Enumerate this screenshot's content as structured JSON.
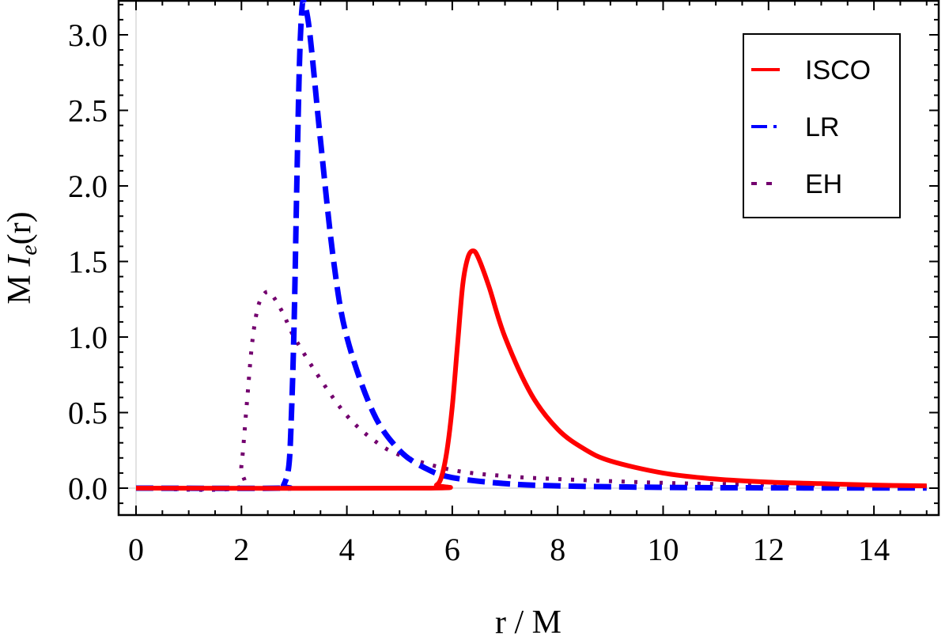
{
  "chart_data": {
    "type": "line",
    "title": "",
    "xlabel": "r / M",
    "ylabel_prefix": "M ",
    "ylabel_italic": "I",
    "ylabel_sub": "e",
    "ylabel_suffix": "(r)",
    "xlim": [
      -0.3,
      15.2
    ],
    "ylim": [
      -0.18,
      3.25
    ],
    "xticks": [
      0,
      2,
      4,
      6,
      8,
      10,
      12,
      14
    ],
    "yticks": [
      0.0,
      0.5,
      1.0,
      1.5,
      2.0,
      2.5,
      3.0
    ],
    "ytick_labels": [
      "0.0",
      "0.5",
      "1.0",
      "1.5",
      "2.0",
      "2.5",
      "3.0"
    ],
    "grid": false,
    "legend_position": "top-right",
    "series": [
      {
        "name": "ISCO",
        "color": "#ff0000",
        "style": "solid",
        "x": [
          0,
          5.5,
          5.7,
          5.8,
          5.9,
          6.0,
          6.1,
          6.2,
          6.3,
          6.4,
          6.5,
          6.7,
          7.0,
          7.5,
          8.0,
          8.5,
          9.0,
          10.0,
          11.0,
          12.0,
          13.0,
          14.0,
          15.0
        ],
        "y": [
          0,
          0,
          0.02,
          0.08,
          0.25,
          0.54,
          0.95,
          1.35,
          1.53,
          1.57,
          1.52,
          1.33,
          1.0,
          0.62,
          0.39,
          0.26,
          0.18,
          0.1,
          0.06,
          0.04,
          0.03,
          0.02,
          0.015
        ]
      },
      {
        "name": "LR",
        "color": "#0000ff",
        "style": "dashed",
        "x": [
          0,
          2.7,
          2.8,
          2.9,
          2.95,
          3.0,
          3.05,
          3.1,
          3.15,
          3.2,
          3.3,
          3.5,
          3.75,
          4.0,
          4.5,
          5.0,
          5.5,
          6.0,
          7.0,
          8.0,
          10.0,
          12.0,
          15.0
        ],
        "y": [
          0,
          0,
          0.02,
          0.15,
          0.5,
          1.1,
          2.0,
          2.8,
          3.18,
          3.2,
          3.0,
          2.3,
          1.5,
          1.0,
          0.5,
          0.25,
          0.13,
          0.07,
          0.03,
          0.015,
          0.005,
          0.002,
          0.001
        ]
      },
      {
        "name": "EH",
        "color": "#73006e",
        "style": "dotted",
        "x": [
          0,
          1.9,
          2.0,
          2.1,
          2.2,
          2.3,
          2.4,
          2.5,
          2.6,
          2.8,
          3.0,
          3.5,
          4.0,
          4.5,
          5.0,
          6.0,
          7.0,
          8.0,
          10.0,
          12.0,
          15.0
        ],
        "y": [
          0,
          0,
          0.15,
          0.55,
          0.95,
          1.18,
          1.27,
          1.3,
          1.27,
          1.15,
          1.0,
          0.72,
          0.48,
          0.32,
          0.22,
          0.12,
          0.08,
          0.06,
          0.035,
          0.022,
          0.012
        ]
      }
    ]
  }
}
